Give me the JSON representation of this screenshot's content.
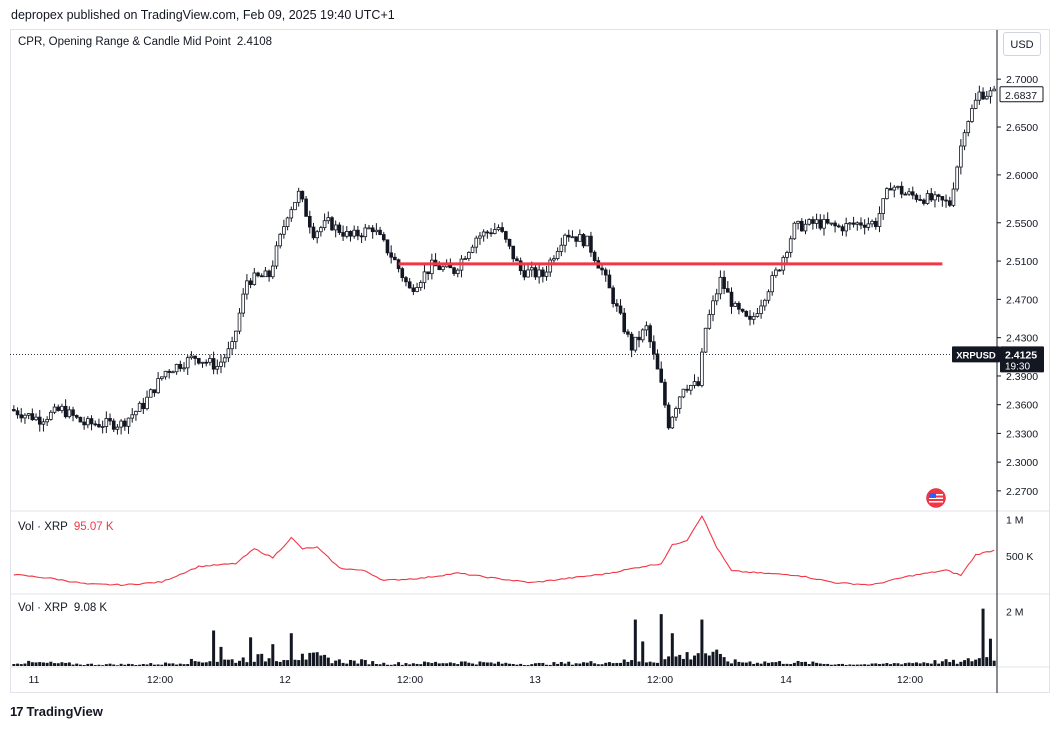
{
  "header": {
    "text": "depropex published on TradingView.com, Feb 09, 2025 19:40 UTC+1"
  },
  "currency_label": "USD",
  "price_legend": {
    "name": "CPR, Opening Range & Candle Mid Point",
    "value": "2.4108"
  },
  "vol1_legend": {
    "name": "Vol · XRP",
    "value": "95.07 K"
  },
  "vol2_legend": {
    "name": "Vol · XRP",
    "value": "9.08 K"
  },
  "symbol_tag": {
    "symbol": "XRPUSD",
    "price": "2.4125",
    "countdown": "19:30"
  },
  "last_price_label": "2.6837",
  "footer": {
    "brand": "TradingView",
    "logo_glyph": "17"
  },
  "flag_icon": "us-flag-icon",
  "colors": {
    "candle": "#131722",
    "level_line": "#f23645",
    "volume_line": "#f23645",
    "grid_text": "#131722",
    "background": "#ffffff"
  },
  "chart_data": [
    {
      "type": "candlestick",
      "title": "",
      "ylim": [
        2.25,
        2.72
      ],
      "y_ticks": [
        "2.7000",
        "2.6500",
        "2.6000",
        "2.5500",
        "2.5100",
        "2.4700",
        "2.4300",
        "2.3900",
        "2.3600",
        "2.3300",
        "2.3000",
        "2.2700"
      ],
      "x_tick_labels": [
        "11",
        "12:00",
        "12",
        "12:00",
        "13",
        "12:00",
        "14",
        "12:00"
      ],
      "horizontal_level": {
        "value": 2.507,
        "color": "#f23645"
      },
      "last_price_line": 2.4125,
      "anchor_points": [
        [
          0,
          2.355
        ],
        [
          8,
          2.345
        ],
        [
          14,
          2.355
        ],
        [
          20,
          2.34
        ],
        [
          30,
          2.34
        ],
        [
          36,
          2.36
        ],
        [
          42,
          2.395
        ],
        [
          50,
          2.41
        ],
        [
          56,
          2.4
        ],
        [
          60,
          2.42
        ],
        [
          64,
          2.49
        ],
        [
          70,
          2.495
        ],
        [
          75,
          2.56
        ],
        [
          78,
          2.58
        ],
        [
          82,
          2.54
        ],
        [
          86,
          2.55
        ],
        [
          92,
          2.535
        ],
        [
          98,
          2.545
        ],
        [
          104,
          2.51
        ],
        [
          108,
          2.48
        ],
        [
          114,
          2.505
        ],
        [
          120,
          2.5
        ],
        [
          126,
          2.535
        ],
        [
          132,
          2.545
        ],
        [
          138,
          2.5
        ],
        [
          144,
          2.495
        ],
        [
          150,
          2.54
        ],
        [
          156,
          2.53
        ],
        [
          160,
          2.5
        ],
        [
          164,
          2.46
        ],
        [
          168,
          2.42
        ],
        [
          172,
          2.44
        ],
        [
          176,
          2.38
        ],
        [
          178,
          2.34
        ],
        [
          182,
          2.38
        ],
        [
          186,
          2.38
        ],
        [
          188,
          2.44
        ],
        [
          192,
          2.49
        ],
        [
          196,
          2.46
        ],
        [
          200,
          2.445
        ],
        [
          204,
          2.475
        ],
        [
          208,
          2.505
        ],
        [
          212,
          2.545
        ],
        [
          218,
          2.55
        ],
        [
          224,
          2.545
        ],
        [
          230,
          2.55
        ],
        [
          234,
          2.55
        ],
        [
          238,
          2.59
        ],
        [
          242,
          2.58
        ],
        [
          248,
          2.575
        ],
        [
          254,
          2.57
        ],
        [
          258,
          2.65
        ],
        [
          262,
          2.685
        ]
      ]
    },
    {
      "type": "line",
      "title": "Vol · XRP",
      "y_ticks": [
        "1 M",
        "500 K"
      ],
      "ylim": [
        0,
        1100000
      ],
      "anchor_points": [
        [
          0,
          250000
        ],
        [
          10,
          200000
        ],
        [
          20,
          120000
        ],
        [
          30,
          110000
        ],
        [
          40,
          150000
        ],
        [
          50,
          360000
        ],
        [
          60,
          400000
        ],
        [
          65,
          600000
        ],
        [
          70,
          480000
        ],
        [
          75,
          750000
        ],
        [
          78,
          600000
        ],
        [
          82,
          620000
        ],
        [
          88,
          340000
        ],
        [
          95,
          300000
        ],
        [
          100,
          170000
        ],
        [
          110,
          200000
        ],
        [
          120,
          270000
        ],
        [
          130,
          200000
        ],
        [
          140,
          140000
        ],
        [
          150,
          200000
        ],
        [
          160,
          260000
        ],
        [
          170,
          360000
        ],
        [
          175,
          400000
        ],
        [
          178,
          650000
        ],
        [
          182,
          720000
        ],
        [
          186,
          1050000
        ],
        [
          190,
          620000
        ],
        [
          194,
          300000
        ],
        [
          202,
          270000
        ],
        [
          212,
          240000
        ],
        [
          222,
          140000
        ],
        [
          232,
          110000
        ],
        [
          242,
          230000
        ],
        [
          252,
          310000
        ],
        [
          256,
          240000
        ],
        [
          260,
          520000
        ],
        [
          265,
          580000
        ]
      ]
    },
    {
      "type": "bar",
      "title": "Vol · XRP",
      "y_ticks": [
        "2 M"
      ],
      "ylim": [
        0,
        2600000
      ],
      "spikes": [
        [
          54,
          1300000
        ],
        [
          56,
          700000
        ],
        [
          64,
          1050000
        ],
        [
          70,
          800000
        ],
        [
          75,
          1200000
        ],
        [
          78,
          450000
        ],
        [
          168,
          1700000
        ],
        [
          170,
          900000
        ],
        [
          175,
          1900000
        ],
        [
          178,
          1200000
        ],
        [
          186,
          1700000
        ],
        [
          190,
          600000
        ],
        [
          262,
          2100000
        ],
        [
          264,
          1000000
        ]
      ]
    }
  ]
}
